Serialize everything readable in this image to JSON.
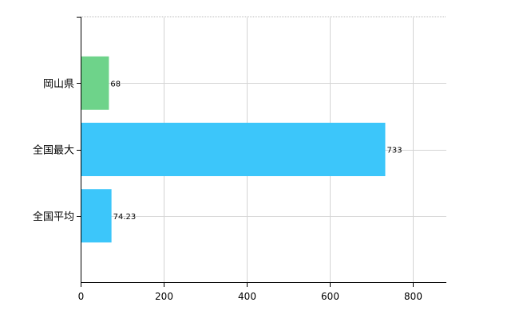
{
  "chart_data": {
    "type": "bar",
    "orientation": "horizontal",
    "title": "",
    "xlabel": "",
    "ylabel": "",
    "categories": [
      "岡山県",
      "全国最大",
      "全国平均"
    ],
    "values": [
      68,
      733,
      74.23
    ],
    "data_labels": [
      "68",
      "733",
      "74.23"
    ],
    "bar_colors": [
      "#6ed38a",
      "#3cc6fa",
      "#3cc6fa"
    ],
    "xlim": [
      0,
      880
    ],
    "x_ticks": [
      0,
      200,
      400,
      600,
      800
    ],
    "x_tick_labels": [
      "0",
      "200",
      "400",
      "600",
      "800"
    ],
    "grid": true,
    "legend": false
  }
}
